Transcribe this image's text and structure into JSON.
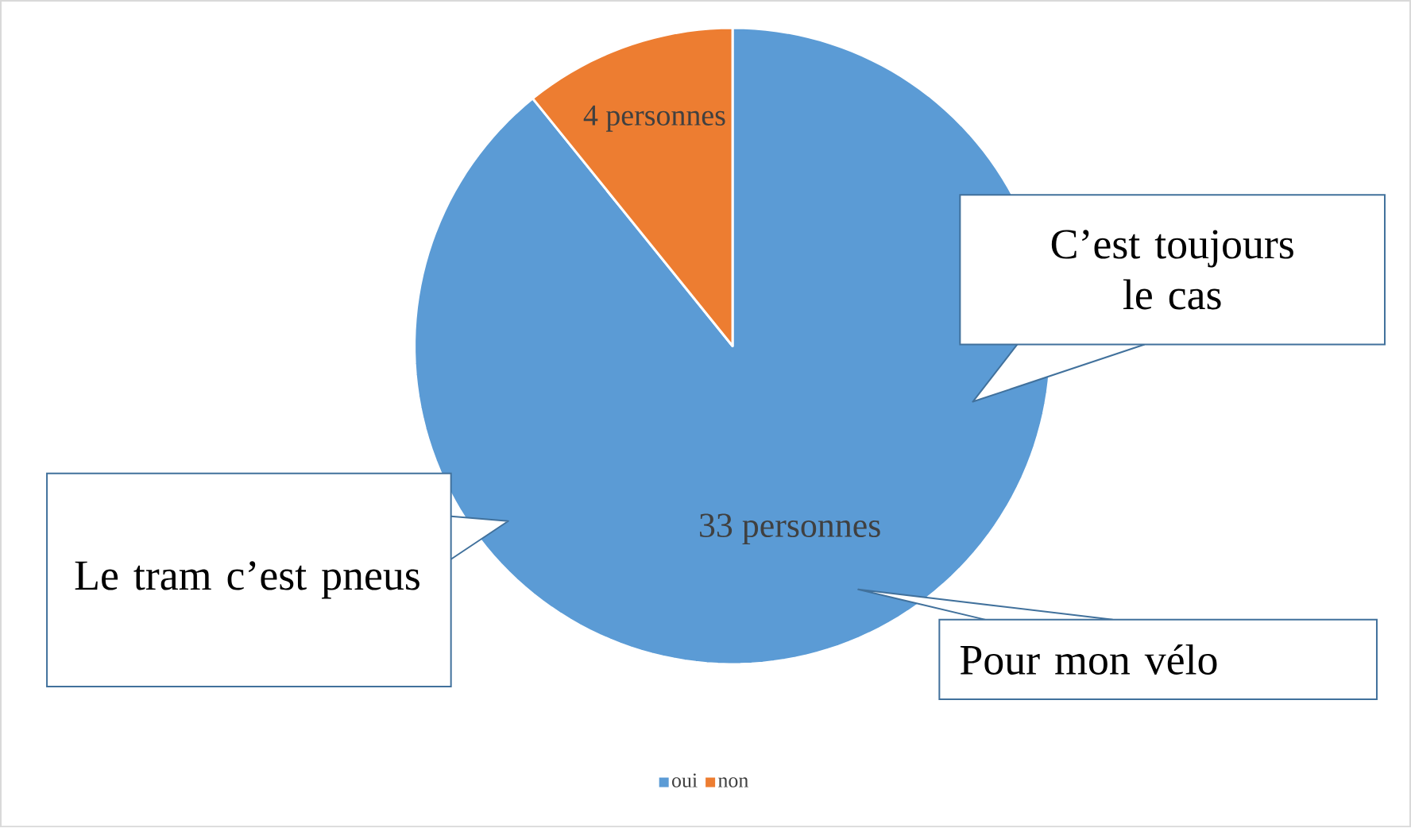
{
  "chart_data": {
    "type": "pie",
    "categories": [
      "oui",
      "non"
    ],
    "values": [
      33,
      4
    ],
    "colors": [
      "#5b9bd5",
      "#ed7d31"
    ],
    "value_labels": [
      "33 personnes",
      "4 personnes"
    ],
    "annotations": [
      "C’est toujours le cas",
      "Le tram c’est pneus",
      "Pour mon vélo"
    ],
    "legend": "bottom"
  }
}
